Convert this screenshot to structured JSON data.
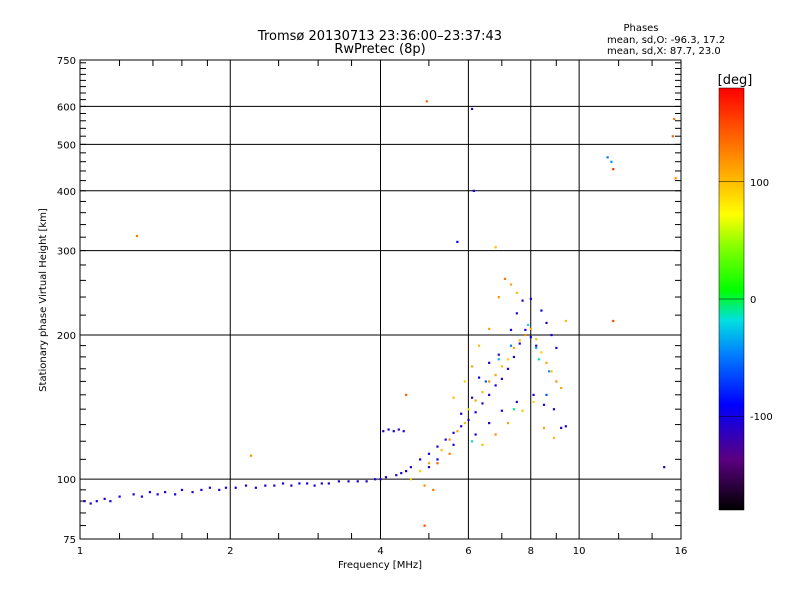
{
  "chart_data": {
    "type": "scatter",
    "title": "Tromsø 20130713 23:36:00–23:37:43",
    "subtitle": "RwPretec (8p)",
    "xlabel": "Frequency [MHz]",
    "ylabel": "Stationary phase Virtual Height [km]",
    "x_scale": "log",
    "y_scale": "log",
    "xlim": [
      1,
      16
    ],
    "ylim": [
      75,
      750
    ],
    "x_ticks": [
      "1",
      "2",
      "4",
      "6",
      "8",
      "10",
      "16"
    ],
    "y_ticks": [
      "75",
      "100",
      "200",
      "300",
      "400",
      "500",
      "600",
      "750"
    ],
    "x_grid": [
      2,
      4,
      6,
      8,
      10
    ],
    "y_grid": [
      100,
      200,
      300,
      400,
      500,
      600
    ],
    "grid": true,
    "legend": {
      "heading": "Phases",
      "lines": [
        "mean, sd,O: -96.3, 17.2",
        "mean, sd,X: 87.7, 23.0"
      ]
    },
    "colorbar": {
      "label": "[deg]",
      "range": [
        -180,
        180
      ],
      "ticks": [
        "100",
        "0",
        "-100"
      ],
      "tick_values": [
        100,
        0,
        -100
      ]
    },
    "series": [
      {
        "points": [
          [
            1.02,
            90,
            -110
          ],
          [
            1.05,
            89,
            -105
          ],
          [
            1.08,
            90,
            -100
          ],
          [
            1.12,
            91,
            -110
          ],
          [
            1.15,
            90,
            -95
          ],
          [
            1.2,
            92,
            -100
          ],
          [
            1.28,
            93,
            -110
          ],
          [
            1.33,
            92,
            -105
          ],
          [
            1.38,
            94,
            -100
          ],
          [
            1.43,
            93,
            -105
          ],
          [
            1.48,
            94,
            -110
          ],
          [
            1.55,
            93,
            -100
          ],
          [
            1.6,
            95,
            -105
          ],
          [
            1.68,
            94,
            -110
          ],
          [
            1.75,
            95,
            -100
          ],
          [
            1.82,
            96,
            -105
          ],
          [
            1.9,
            95,
            -110
          ],
          [
            1.96,
            96,
            -100
          ],
          [
            2.05,
            96,
            -105
          ],
          [
            2.15,
            97,
            -110
          ],
          [
            2.25,
            96,
            -100
          ],
          [
            2.35,
            97,
            -105
          ],
          [
            2.45,
            97,
            -110
          ],
          [
            2.55,
            98,
            -100
          ],
          [
            2.65,
            97,
            -105
          ],
          [
            2.75,
            98,
            -90
          ],
          [
            2.85,
            98,
            -100
          ],
          [
            2.95,
            97,
            -105
          ],
          [
            3.05,
            98,
            -110
          ],
          [
            3.15,
            98,
            -100
          ],
          [
            3.3,
            99,
            -105
          ],
          [
            3.45,
            99,
            -110
          ],
          [
            3.6,
            99,
            -100
          ],
          [
            3.75,
            99,
            -105
          ],
          [
            3.9,
            100,
            -100
          ],
          [
            4.0,
            100,
            -110
          ],
          [
            4.1,
            101,
            -105
          ],
          [
            4.05,
            126,
            -110
          ],
          [
            4.15,
            127,
            -105
          ],
          [
            4.25,
            126,
            -100
          ],
          [
            4.35,
            127,
            -110
          ],
          [
            4.45,
            126,
            -105
          ],
          [
            4.3,
            102,
            -110
          ],
          [
            4.4,
            103,
            -105
          ],
          [
            4.5,
            104,
            -100
          ],
          [
            4.6,
            106,
            -110
          ],
          [
            4.8,
            110,
            -105
          ],
          [
            5.0,
            113,
            -100
          ],
          [
            5.2,
            117,
            -110
          ],
          [
            5.4,
            121,
            -105
          ],
          [
            5.6,
            125,
            -100
          ],
          [
            5.8,
            129,
            -110
          ],
          [
            6.0,
            133,
            -105
          ],
          [
            6.2,
            138,
            -100
          ],
          [
            6.4,
            144,
            -110
          ],
          [
            6.6,
            150,
            -105
          ],
          [
            6.8,
            157,
            -100
          ],
          [
            7.0,
            162,
            -110
          ],
          [
            7.2,
            170,
            -105
          ],
          [
            7.4,
            180,
            -100
          ],
          [
            7.6,
            192,
            -110
          ],
          [
            7.8,
            205,
            -105
          ],
          [
            8.0,
            198,
            -100
          ],
          [
            8.2,
            190,
            -110
          ],
          [
            5.8,
            137,
            -105
          ],
          [
            6.1,
            148,
            -110
          ],
          [
            6.3,
            163,
            -100
          ],
          [
            6.6,
            175,
            -105
          ],
          [
            6.9,
            182,
            -110
          ],
          [
            7.3,
            205,
            -100
          ],
          [
            7.5,
            222,
            -105
          ],
          [
            7.7,
            236,
            -110
          ],
          [
            8.0,
            238,
            -105
          ],
          [
            8.4,
            225,
            -100
          ],
          [
            8.6,
            212,
            -110
          ],
          [
            8.8,
            200,
            -105
          ],
          [
            9.0,
            188,
            -100
          ],
          [
            9.2,
            128,
            -110
          ],
          [
            9.4,
            129,
            -105
          ],
          [
            5.0,
            106,
            -110
          ],
          [
            5.2,
            110,
            -100
          ],
          [
            5.6,
            118,
            -105
          ],
          [
            6.2,
            124,
            -110
          ],
          [
            6.6,
            131,
            -100
          ],
          [
            7.0,
            139,
            -105
          ],
          [
            7.5,
            145,
            -110
          ],
          [
            8.1,
            150,
            -100
          ],
          [
            8.5,
            143,
            -105
          ],
          [
            8.9,
            140,
            -110
          ],
          [
            6.5,
            160,
            -60
          ],
          [
            6.9,
            178,
            -30
          ],
          [
            7.3,
            190,
            -50
          ],
          [
            7.9,
            210,
            -20
          ],
          [
            8.3,
            178,
            -10
          ],
          [
            8.7,
            168,
            -40
          ],
          [
            6.1,
            120,
            -20
          ],
          [
            7.4,
            140,
            -10
          ],
          [
            8.6,
            150,
            -60
          ],
          [
            8.2,
            188,
            -30
          ],
          [
            14.8,
            106,
            -100
          ],
          [
            11.4,
            470,
            -50
          ],
          [
            11.6,
            460,
            -40
          ],
          [
            5.7,
            313,
            -95
          ],
          [
            6.15,
            400,
            -100
          ],
          [
            6.1,
            593,
            -100
          ]
        ]
      },
      {
        "points": [
          [
            4.6,
            100,
            100
          ],
          [
            4.8,
            104,
            90
          ],
          [
            5.0,
            108,
            110
          ],
          [
            5.3,
            115,
            100
          ],
          [
            5.5,
            121,
            120
          ],
          [
            5.7,
            126,
            110
          ],
          [
            5.9,
            131,
            100
          ],
          [
            6.0,
            140,
            90
          ],
          [
            6.2,
            146,
            110
          ],
          [
            6.4,
            152,
            100
          ],
          [
            6.6,
            160,
            120
          ],
          [
            6.8,
            165,
            110
          ],
          [
            7.0,
            172,
            100
          ],
          [
            7.2,
            178,
            90
          ],
          [
            7.4,
            188,
            110
          ],
          [
            7.6,
            195,
            100
          ],
          [
            7.8,
            200,
            120
          ],
          [
            8.0,
            206,
            110
          ],
          [
            8.2,
            196,
            100
          ],
          [
            8.4,
            184,
            90
          ],
          [
            8.6,
            175,
            110
          ],
          [
            8.8,
            168,
            100
          ],
          [
            9.0,
            160,
            120
          ],
          [
            9.2,
            155,
            110
          ],
          [
            9.4,
            214,
            100
          ],
          [
            6.3,
            190,
            100
          ],
          [
            6.6,
            206,
            110
          ],
          [
            6.9,
            240,
            120
          ],
          [
            7.1,
            262,
            130
          ],
          [
            7.3,
            255,
            110
          ],
          [
            7.5,
            245,
            100
          ],
          [
            5.6,
            148,
            100
          ],
          [
            5.9,
            160,
            90
          ],
          [
            6.1,
            172,
            110
          ],
          [
            6.4,
            118,
            100
          ],
          [
            6.8,
            124,
            120
          ],
          [
            7.2,
            131,
            110
          ],
          [
            7.7,
            139,
            100
          ],
          [
            8.1,
            145,
            90
          ],
          [
            8.5,
            128,
            110
          ],
          [
            8.9,
            122,
            100
          ],
          [
            5.2,
            108,
            140
          ],
          [
            5.5,
            113,
            130
          ],
          [
            4.9,
            97,
            120
          ],
          [
            5.1,
            95,
            130
          ],
          [
            4.5,
            150,
            140
          ],
          [
            4.9,
            80,
            150
          ],
          [
            1.3,
            322,
            130
          ],
          [
            2.2,
            112,
            120
          ],
          [
            4.95,
            615,
            140
          ],
          [
            11.7,
            444,
            160
          ],
          [
            11.7,
            214,
            150
          ],
          [
            15.4,
            520,
            140
          ],
          [
            15.5,
            565,
            130
          ],
          [
            15.6,
            425,
            120
          ],
          [
            6.8,
            305,
            100
          ]
        ]
      }
    ]
  }
}
